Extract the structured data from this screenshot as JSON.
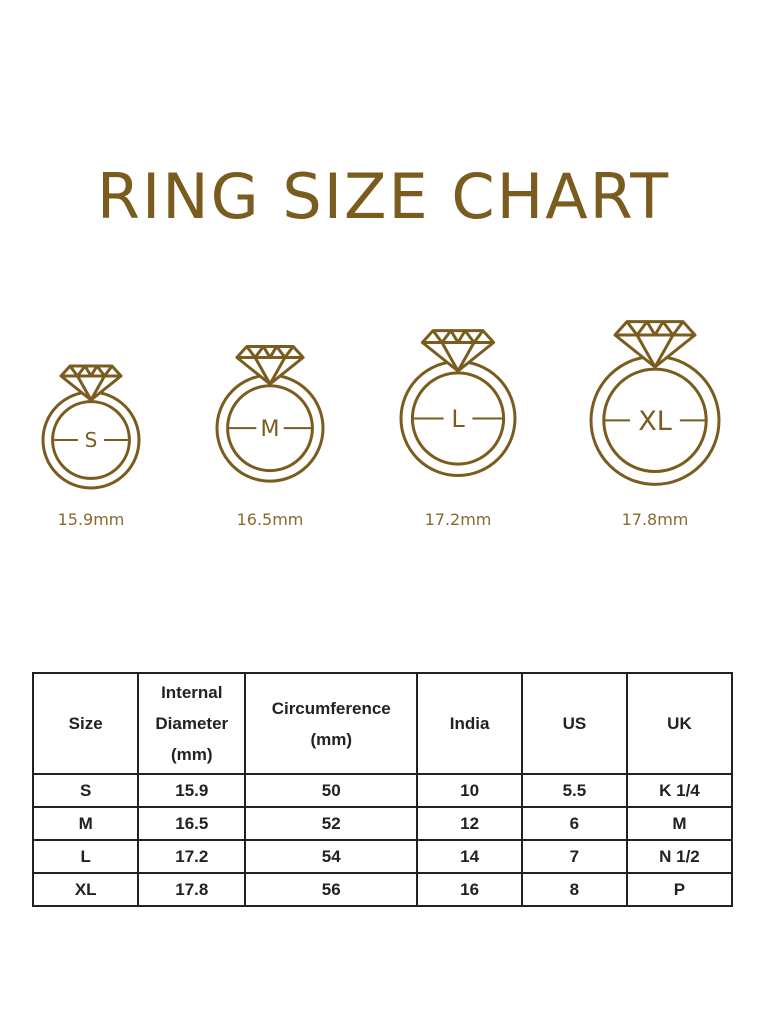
{
  "title": "RING SIZE CHART",
  "accent_color": "#7a5c1e",
  "rings": [
    {
      "size": "S",
      "diameter_label": "15.9mm"
    },
    {
      "size": "M",
      "diameter_label": "16.5mm"
    },
    {
      "size": "L",
      "diameter_label": "17.2mm"
    },
    {
      "size": "XL",
      "diameter_label": "17.8mm"
    }
  ],
  "table": {
    "headers": [
      "Size",
      "Internal Diameter (mm)",
      "Circumference (mm)",
      "India",
      "US",
      "UK"
    ],
    "header_lines": [
      [
        "Size"
      ],
      [
        "Internal",
        "Diameter",
        "(mm)"
      ],
      [
        "Circumference",
        "(mm)"
      ],
      [
        "India"
      ],
      [
        "US"
      ],
      [
        "UK"
      ]
    ],
    "rows": [
      [
        "S",
        "15.9",
        "50",
        "10",
        "5.5",
        "K 1/4"
      ],
      [
        "M",
        "16.5",
        "52",
        "12",
        "6",
        "M"
      ],
      [
        "L",
        "17.2",
        "54",
        "14",
        "7",
        "N 1/2"
      ],
      [
        "XL",
        "17.8",
        "56",
        "16",
        "8",
        "P"
      ]
    ]
  }
}
